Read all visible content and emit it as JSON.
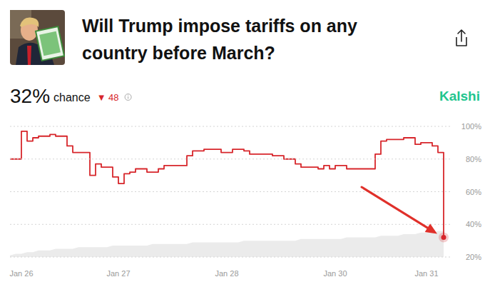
{
  "header": {
    "title": "Will Trump impose tariffs on any country before March?",
    "price": "32%",
    "caption": "chance",
    "change": "▼ 48",
    "brand": "Kalshi"
  },
  "chart_data": {
    "type": "line",
    "categories": [
      null,
      null,
      "Jan 26",
      null,
      null,
      null,
      null,
      null,
      null,
      null,
      null,
      null,
      null,
      null,
      null,
      null,
      null,
      null,
      null,
      "Jan 27",
      null,
      null,
      null,
      null,
      null,
      null,
      null,
      null,
      null,
      null,
      null,
      null,
      null,
      null,
      null,
      null,
      null,
      null,
      "Jan 28",
      null,
      null,
      null,
      null,
      null,
      null,
      null,
      null,
      null,
      null,
      null,
      null,
      null,
      null,
      null,
      null,
      null,
      null,
      "Jan 30",
      null,
      null,
      null,
      null,
      null,
      null,
      null,
      null,
      null,
      null,
      null,
      null,
      null,
      null,
      null,
      "Jan 31",
      null,
      null,
      null
    ],
    "series": [
      {
        "type": "area",
        "color": "#ebebeb",
        "values": [
          21,
          22,
          22,
          23,
          23,
          24,
          24,
          24,
          25,
          25,
          25,
          25,
          26,
          26,
          26,
          26,
          26,
          26,
          27,
          27,
          27,
          27,
          27,
          27,
          27,
          28,
          28,
          28,
          28,
          28,
          28,
          28,
          29,
          29,
          29,
          29,
          29,
          29,
          29,
          29,
          29,
          30,
          30,
          30,
          30,
          30,
          30,
          30,
          30,
          30,
          30,
          31,
          31,
          31,
          31,
          31,
          31,
          31,
          31,
          32,
          32,
          32,
          32,
          32,
          32,
          33,
          33,
          33,
          33,
          34,
          34,
          34,
          35,
          35,
          35,
          36,
          36
        ]
      },
      {
        "type": "line",
        "color": "#d7262b",
        "line_style": "step",
        "marker": "end",
        "values": [
          80,
          80,
          97,
          91,
          93,
          94,
          94,
          95,
          94,
          94,
          88,
          84,
          84,
          84,
          70,
          77,
          75,
          75,
          69,
          65,
          71,
          72,
          74,
          74,
          72,
          72,
          74,
          76,
          76,
          76,
          76,
          82,
          85,
          85,
          86,
          86,
          86,
          84,
          84,
          86,
          86,
          85,
          83,
          83,
          83,
          83,
          82,
          82,
          80,
          80,
          77,
          75,
          75,
          75,
          74,
          76,
          74,
          76,
          76,
          74,
          74,
          74,
          74,
          74,
          83,
          91,
          92,
          92,
          92,
          93,
          93,
          89,
          90,
          90,
          88,
          84,
          32
        ]
      }
    ],
    "ylim": [
      20,
      100
    ],
    "yticks": [
      {
        "value": 20,
        "label": "20%"
      },
      {
        "value": 40,
        "label": "40%"
      },
      {
        "value": 60,
        "label": "60%"
      },
      {
        "value": 80,
        "label": "80%"
      },
      {
        "value": 100,
        "label": "100%"
      }
    ],
    "grid": true
  }
}
